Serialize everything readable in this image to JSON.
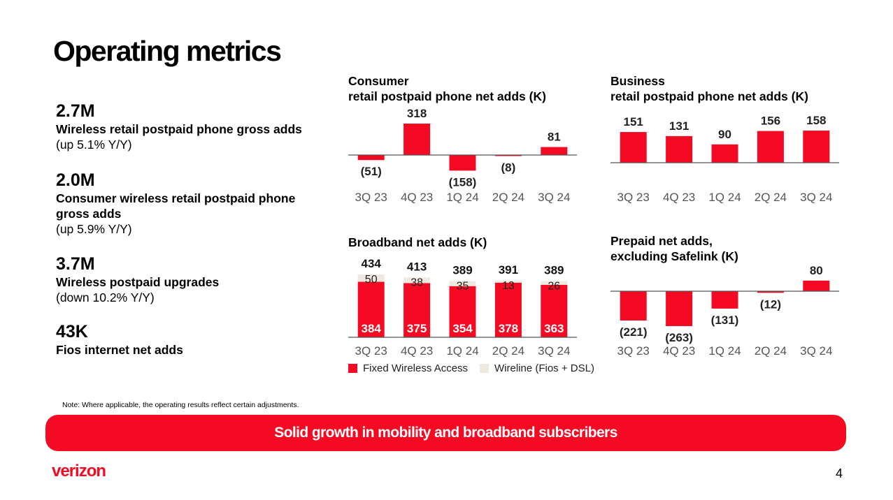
{
  "title": "Operating metrics",
  "kpis": [
    {
      "value": "2.7M",
      "label": "Wireless retail postpaid phone gross adds",
      "change": "(up 5.1% Y/Y)"
    },
    {
      "value": "2.0M",
      "label": "Consumer wireless retail postpaid phone gross adds",
      "change": "(up 5.9% Y/Y)"
    },
    {
      "value": "3.7M",
      "label": "Wireless postpaid upgrades",
      "change": "(down 10.2% Y/Y)"
    },
    {
      "value": "43K",
      "label": "Fios internet net adds",
      "change": ""
    }
  ],
  "colors": {
    "red": "#f50a23",
    "beige": "#efe9df",
    "axis": "#555555",
    "tick_label": "#555555"
  },
  "chart_data": [
    {
      "type": "bar",
      "title_line1": "Consumer",
      "title_line2": "retail postpaid phone net adds (K)",
      "categories": [
        "3Q 23",
        "4Q 23",
        "1Q 24",
        "2Q 24",
        "3Q 24"
      ],
      "values": [
        -51,
        318,
        -158,
        -8,
        81
      ],
      "labels": [
        "(51)",
        "318",
        "(158)",
        "(8)",
        "81"
      ]
    },
    {
      "type": "bar",
      "title_line1": "Business",
      "title_line2": "retail postpaid phone net adds (K)",
      "categories": [
        "3Q 23",
        "4Q 23",
        "1Q 24",
        "2Q 24",
        "3Q 24"
      ],
      "values": [
        151,
        131,
        90,
        156,
        158
      ],
      "labels": [
        "151",
        "131",
        "90",
        "156",
        "158"
      ]
    },
    {
      "type": "stacked_bar",
      "title_line1": "Broadband net adds (K)",
      "categories": [
        "3Q 23",
        "4Q 23",
        "1Q 24",
        "2Q 24",
        "3Q 24"
      ],
      "series": [
        {
          "name": "Fixed Wireless Access",
          "values": [
            384,
            375,
            354,
            378,
            363
          ]
        },
        {
          "name": "Wireline (Fios + DSL)",
          "values": [
            50,
            38,
            35,
            13,
            26
          ]
        }
      ],
      "totals": [
        434,
        413,
        389,
        391,
        389
      ],
      "legend": "bottom"
    },
    {
      "type": "bar",
      "title_line1": "Prepaid net adds,",
      "title_line2": "excluding Safelink (K)",
      "categories": [
        "3Q 23",
        "4Q 23",
        "1Q 24",
        "2Q 24",
        "3Q 24"
      ],
      "values": [
        -221,
        -263,
        -131,
        -12,
        80
      ],
      "labels": [
        "(221)",
        "(263)",
        "(131)",
        "(12)",
        "80"
      ]
    }
  ],
  "footer": {
    "note": "Note:  Where applicable, the operating results reflect certain adjustments.",
    "banner": "Solid growth in mobility and broadband subscribers",
    "logo": "verizon",
    "page_number": "4"
  }
}
